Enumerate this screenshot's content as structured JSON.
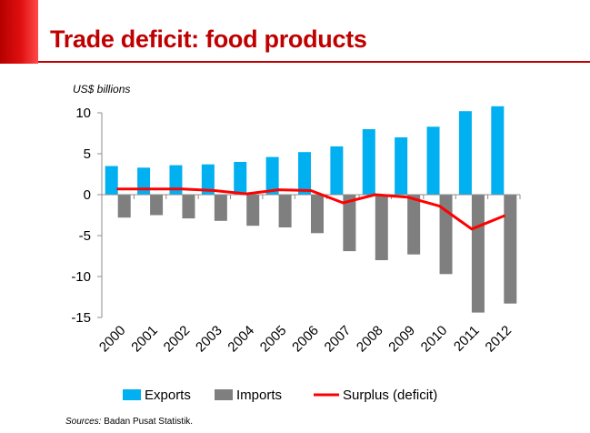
{
  "page": {
    "title": "Trade deficit: food products",
    "source_label": "Sources:",
    "source_text": "Badan Pusat Statistik."
  },
  "colors": {
    "brand_red": "#c00000",
    "exports": "#00b0f0",
    "imports": "#7f7f7f",
    "surplus": "#ff0000"
  },
  "chart_data": {
    "type": "bar",
    "title": "Trade deficit: food products",
    "ylabel": "US$ billions",
    "xlabel": "",
    "ylim": [
      -15,
      10
    ],
    "yticks": [
      10,
      5,
      0,
      -5,
      -10,
      -15
    ],
    "categories": [
      "2000",
      "2001",
      "2002",
      "2003",
      "2004",
      "2005",
      "2006",
      "2007",
      "2008",
      "2009",
      "2010",
      "2011",
      "2012"
    ],
    "series": [
      {
        "name": "Exports",
        "kind": "bar",
        "values": [
          3.5,
          3.3,
          3.6,
          3.7,
          4.0,
          4.6,
          5.2,
          5.9,
          8.0,
          7.0,
          8.3,
          10.2,
          10.8
        ]
      },
      {
        "name": "Imports",
        "kind": "bar",
        "values": [
          -2.8,
          -2.5,
          -2.9,
          -3.2,
          -3.8,
          -4.0,
          -4.7,
          -6.9,
          -8.0,
          -7.3,
          -9.7,
          -14.4,
          -13.3
        ]
      },
      {
        "name": "Surplus (deficit)",
        "kind": "line",
        "values": [
          0.7,
          0.7,
          0.7,
          0.5,
          0.1,
          0.6,
          0.5,
          -1.0,
          0.0,
          -0.3,
          -1.4,
          -4.2,
          -2.6
        ]
      }
    ],
    "legend": [
      "Exports",
      "Imports",
      "Surplus (deficit)"
    ],
    "legend_position": "bottom"
  }
}
